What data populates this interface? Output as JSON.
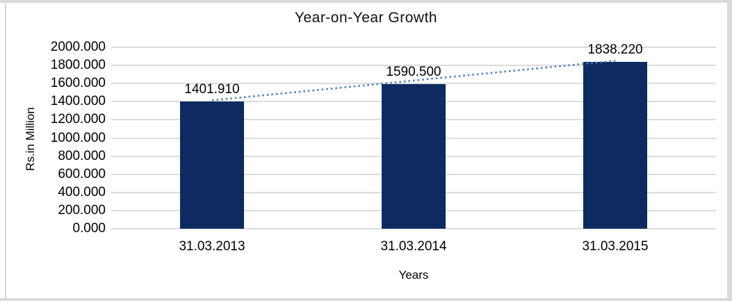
{
  "chart_data": {
    "type": "bar",
    "title": "Year-on-Year Growth",
    "xlabel": "Years",
    "ylabel": "Rs.in Million",
    "categories": [
      "31.03.2013",
      "31.03.2014",
      "31.03.2015"
    ],
    "values": [
      1401.91,
      1590.5,
      1838.22
    ],
    "value_labels": [
      "1401.910",
      "1590.500",
      "1838.220"
    ],
    "ylim": [
      0,
      2000
    ],
    "ytick_step": 200,
    "ytick_labels": [
      "0.000",
      "200.000",
      "400.000",
      "600.000",
      "800.000",
      "1000.000",
      "1200.000",
      "1400.000",
      "1600.000",
      "1800.000",
      "2000.000"
    ],
    "grid": true,
    "legend": "none",
    "trendline": {
      "type": "linear",
      "style": "dotted",
      "color": "#4e81bd"
    },
    "colors": {
      "bar": "#0d2b61",
      "gridline": "#dcdcdc",
      "text": "#000000",
      "frame": "#dadada",
      "background": "#ffffff"
    }
  }
}
